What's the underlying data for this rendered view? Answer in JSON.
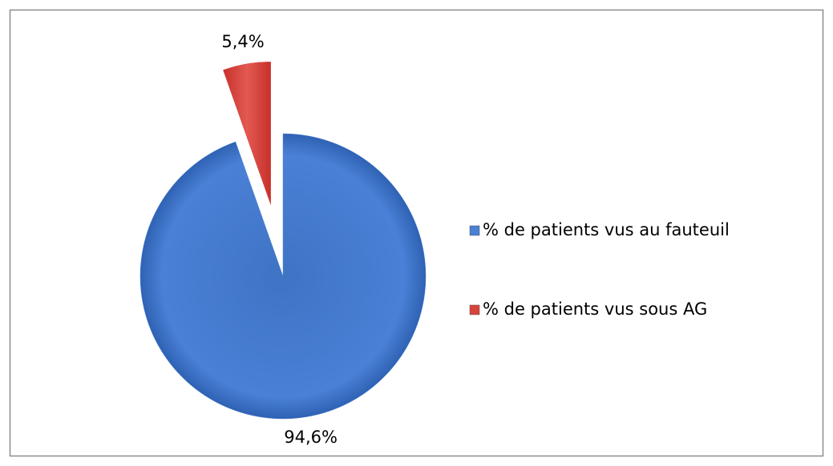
{
  "chart_data": {
    "type": "pie",
    "categories": [
      "% de patients vus au fauteuil",
      "% de patients vus sous AG"
    ],
    "values": [
      94.6,
      5.4
    ],
    "value_labels": [
      "94,6%",
      "5,4%"
    ],
    "colors": [
      "#4a80d6",
      "#d8433c"
    ],
    "legend": "right"
  }
}
